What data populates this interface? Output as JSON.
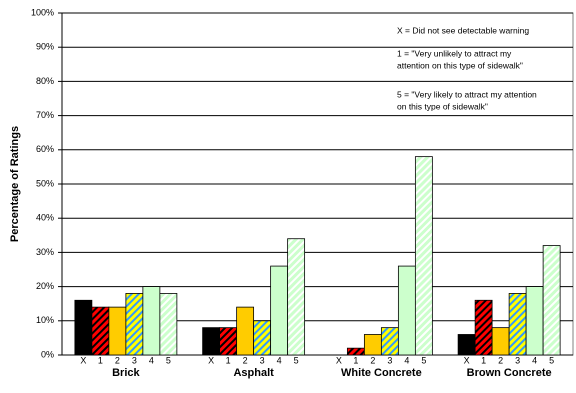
{
  "chart_data": {
    "type": "bar",
    "y_label": "Percentage of Ratings",
    "categories": [
      "Brick",
      "Asphalt",
      "White Concrete",
      "Brown Concrete"
    ],
    "series": [
      {
        "name": "X",
        "color": "#000000",
        "values": [
          16,
          8,
          0,
          6
        ]
      },
      {
        "name": "1",
        "color": "#ff0000",
        "hatch": "#000000",
        "values": [
          14,
          8,
          2,
          16
        ]
      },
      {
        "name": "2",
        "color": "#ffcc00",
        "values": [
          14,
          14,
          6,
          8
        ]
      },
      {
        "name": "3",
        "color": "#ffff00",
        "hatch": "#3399ff",
        "values": [
          18,
          10,
          8,
          18
        ]
      },
      {
        "name": "4",
        "color": "#ccffcc",
        "values": [
          20,
          26,
          26,
          20
        ]
      },
      {
        "name": "5",
        "color": "#ccffcc",
        "hatch": "#ffffff",
        "values": [
          18,
          34,
          58,
          32
        ]
      }
    ],
    "annotations": [
      "X = Did not see detectable warning",
      "1 = \"Very unlikely to attract my",
      "attention on this type of sidewalk\"",
      "5 = \"Very likely to attract my attention",
      "on this type of sidewalk\""
    ],
    "ylim": [
      0,
      100
    ],
    "yticks": [
      {
        "value": 0,
        "label": "0%"
      },
      {
        "value": 10,
        "label": "10%"
      },
      {
        "value": 20,
        "label": "20%"
      },
      {
        "value": 30,
        "label": "30%"
      },
      {
        "value": 40,
        "label": "40%"
      },
      {
        "value": 50,
        "label": "50%"
      },
      {
        "value": 60,
        "label": "60%"
      },
      {
        "value": 70,
        "label": "70%"
      },
      {
        "value": 80,
        "label": "80%"
      },
      {
        "value": 90,
        "label": "90%"
      },
      {
        "value": 100,
        "label": "100%"
      }
    ],
    "grid": true
  }
}
